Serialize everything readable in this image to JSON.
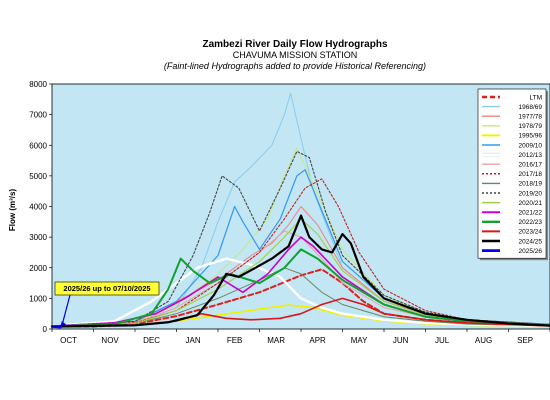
{
  "chart_data": {
    "type": "line",
    "title": "Zambezi River Daily Flow Hydrographs",
    "subtitle": "CHAVUMA MISSION STATION",
    "subtitle2": "(Faint-lined Hydrographs added to provide Historical Referencing)",
    "ylabel": "Flow (m³/s)",
    "xlabel": "",
    "ylim": [
      0,
      8000
    ],
    "yticks": [
      "0",
      "1000",
      "2000",
      "3000",
      "4000",
      "5000",
      "6000",
      "7000",
      "8000"
    ],
    "months": [
      "OCT",
      "NOV",
      "DEC",
      "JAN",
      "FEB",
      "MAR",
      "APR",
      "MAY",
      "JUN",
      "JUL",
      "AUG",
      "SEP"
    ],
    "x_range_months": [
      0,
      12
    ],
    "grid": false,
    "legend_position": "right",
    "annotation": {
      "text": "2025/26 up to 07/10/2025",
      "point": {
        "month": 0.2,
        "flow": 60
      }
    },
    "series": [
      {
        "name": "LTM",
        "color": "#e02020",
        "dash": "5,3",
        "width": 2,
        "points": [
          [
            0,
            95
          ],
          [
            1,
            80
          ],
          [
            2,
            160
          ],
          [
            3,
            420
          ],
          [
            4,
            800
          ],
          [
            5,
            1200
          ],
          [
            6,
            1750
          ],
          [
            6.5,
            1950
          ],
          [
            7,
            1500
          ],
          [
            7.5,
            900
          ],
          [
            8,
            500
          ],
          [
            9,
            300
          ],
          [
            10,
            200
          ],
          [
            11,
            130
          ],
          [
            12,
            100
          ]
        ]
      },
      {
        "name": "1968/69",
        "color": "#88ccee",
        "dash": "",
        "width": 1,
        "points": [
          [
            0,
            100
          ],
          [
            2,
            180
          ],
          [
            3,
            700
          ],
          [
            3.6,
            2000
          ],
          [
            4,
            3500
          ],
          [
            4.4,
            4800
          ],
          [
            4.8,
            5300
          ],
          [
            5.3,
            6000
          ],
          [
            5.6,
            7000
          ],
          [
            5.75,
            7700
          ],
          [
            5.9,
            6800
          ],
          [
            6.3,
            4500
          ],
          [
            7,
            2000
          ],
          [
            8,
            900
          ],
          [
            9,
            500
          ],
          [
            10,
            300
          ],
          [
            12,
            150
          ]
        ]
      },
      {
        "name": "1977/78",
        "color": "#f08080",
        "dash": "",
        "width": 1,
        "points": [
          [
            0,
            100
          ],
          [
            2,
            220
          ],
          [
            3,
            900
          ],
          [
            4,
            1600
          ],
          [
            4.8,
            2400
          ],
          [
            5.3,
            2800
          ],
          [
            5.7,
            3400
          ],
          [
            6,
            4000
          ],
          [
            6.4,
            3400
          ],
          [
            7,
            2000
          ],
          [
            8,
            900
          ],
          [
            9,
            500
          ],
          [
            10,
            300
          ],
          [
            12,
            150
          ]
        ]
      },
      {
        "name": "1978/79",
        "color": "#c8e878",
        "dash": "",
        "width": 1,
        "points": [
          [
            0,
            100
          ],
          [
            2,
            200
          ],
          [
            3,
            800
          ],
          [
            4,
            1800
          ],
          [
            4.6,
            2600
          ],
          [
            5.2,
            3600
          ],
          [
            5.6,
            5000
          ],
          [
            5.9,
            5900
          ],
          [
            6.2,
            5000
          ],
          [
            7,
            2600
          ],
          [
            8,
            1100
          ],
          [
            9,
            500
          ],
          [
            10,
            300
          ],
          [
            12,
            150
          ]
        ]
      },
      {
        "name": "1995/96",
        "color": "#f0f000",
        "dash": "",
        "width": 1.6,
        "points": [
          [
            0,
            90
          ],
          [
            2,
            130
          ],
          [
            3,
            260
          ],
          [
            4,
            450
          ],
          [
            5,
            650
          ],
          [
            5.7,
            780
          ],
          [
            6.3,
            700
          ],
          [
            7,
            450
          ],
          [
            8,
            260
          ],
          [
            9,
            170
          ],
          [
            10,
            120
          ],
          [
            12,
            90
          ]
        ]
      },
      {
        "name": "2009/10",
        "color": "#3399ee",
        "dash": "",
        "width": 1.2,
        "points": [
          [
            0,
            110
          ],
          [
            2,
            250
          ],
          [
            3,
            900
          ],
          [
            4,
            2400
          ],
          [
            4.4,
            4000
          ],
          [
            4.6,
            3500
          ],
          [
            5,
            2600
          ],
          [
            5.5,
            3600
          ],
          [
            5.9,
            5000
          ],
          [
            6.1,
            5200
          ],
          [
            6.4,
            4200
          ],
          [
            7,
            2200
          ],
          [
            8,
            1000
          ],
          [
            9,
            500
          ],
          [
            10,
            300
          ],
          [
            12,
            150
          ]
        ]
      },
      {
        "name": "2012/13",
        "color": "#ffffff",
        "dash": "",
        "width": 2.4,
        "points": [
          [
            0,
            100
          ],
          [
            1.5,
            250
          ],
          [
            2.4,
            900
          ],
          [
            3,
            1500
          ],
          [
            3.5,
            2000
          ],
          [
            4.2,
            2300
          ],
          [
            4.8,
            2100
          ],
          [
            5.5,
            1700
          ],
          [
            6,
            1000
          ],
          [
            6.5,
            700
          ],
          [
            7,
            500
          ],
          [
            8,
            300
          ],
          [
            9,
            200
          ],
          [
            10,
            150
          ],
          [
            12,
            100
          ]
        ]
      },
      {
        "name": "2016/17",
        "color": "#f0a0a0",
        "dash": "",
        "width": 1,
        "points": [
          [
            0,
            100
          ],
          [
            2,
            200
          ],
          [
            3,
            700
          ],
          [
            4,
            1500
          ],
          [
            5,
            2500
          ],
          [
            5.6,
            3200
          ],
          [
            6,
            3000
          ],
          [
            6.5,
            2300
          ],
          [
            7,
            1500
          ],
          [
            8,
            700
          ],
          [
            9,
            400
          ],
          [
            10,
            250
          ],
          [
            12,
            130
          ]
        ]
      },
      {
        "name": "2017/18",
        "color": "#c02020",
        "dash": "2,2",
        "width": 1.1,
        "points": [
          [
            0,
            100
          ],
          [
            2,
            200
          ],
          [
            3,
            600
          ],
          [
            4,
            1500
          ],
          [
            5,
            2500
          ],
          [
            5.6,
            3600
          ],
          [
            6.1,
            4600
          ],
          [
            6.5,
            4900
          ],
          [
            6.9,
            4000
          ],
          [
            7.4,
            2500
          ],
          [
            8,
            1300
          ],
          [
            9,
            600
          ],
          [
            10,
            300
          ],
          [
            12,
            150
          ]
        ]
      },
      {
        "name": "2018/19",
        "color": "#668866",
        "dash": "",
        "width": 1,
        "points": [
          [
            0,
            100
          ],
          [
            2,
            180
          ],
          [
            3,
            500
          ],
          [
            4,
            1000
          ],
          [
            5,
            1600
          ],
          [
            5.6,
            2000
          ],
          [
            6,
            1800
          ],
          [
            6.5,
            1200
          ],
          [
            7,
            800
          ],
          [
            8,
            400
          ],
          [
            9,
            250
          ],
          [
            10,
            160
          ],
          [
            12,
            100
          ]
        ]
      },
      {
        "name": "2019/20",
        "color": "#444444",
        "dash": "2,2",
        "width": 1.1,
        "points": [
          [
            0,
            100
          ],
          [
            2,
            250
          ],
          [
            2.8,
            900
          ],
          [
            3.4,
            2400
          ],
          [
            3.8,
            3800
          ],
          [
            4.1,
            5000
          ],
          [
            4.5,
            4600
          ],
          [
            5,
            3200
          ],
          [
            5.5,
            4600
          ],
          [
            5.9,
            5800
          ],
          [
            6.2,
            5600
          ],
          [
            6.6,
            3800
          ],
          [
            7,
            2400
          ],
          [
            8,
            1100
          ],
          [
            9,
            550
          ],
          [
            10,
            300
          ],
          [
            12,
            150
          ]
        ]
      },
      {
        "name": "2020/21",
        "color": "#a0d040",
        "dash": "",
        "width": 1.1,
        "points": [
          [
            0,
            100
          ],
          [
            2,
            180
          ],
          [
            3,
            600
          ],
          [
            4,
            1300
          ],
          [
            5,
            2200
          ],
          [
            5.6,
            3000
          ],
          [
            6,
            3600
          ],
          [
            6.4,
            3100
          ],
          [
            7,
            1900
          ],
          [
            8,
            900
          ],
          [
            9,
            450
          ],
          [
            10,
            270
          ],
          [
            12,
            140
          ]
        ]
      },
      {
        "name": "2021/22",
        "color": "#cc00cc",
        "dash": "",
        "width": 1.6,
        "points": [
          [
            0,
            100
          ],
          [
            1.5,
            200
          ],
          [
            2.5,
            500
          ],
          [
            3.2,
            1000
          ],
          [
            4,
            1700
          ],
          [
            4.6,
            1200
          ],
          [
            5.2,
            1800
          ],
          [
            5.7,
            2600
          ],
          [
            6,
            3000
          ],
          [
            6.3,
            2700
          ],
          [
            7,
            1700
          ],
          [
            8,
            800
          ],
          [
            9,
            400
          ],
          [
            10,
            250
          ],
          [
            12,
            120
          ]
        ]
      },
      {
        "name": "2022/23",
        "color": "#12a030",
        "dash": "",
        "width": 2,
        "points": [
          [
            0,
            90
          ],
          [
            1.5,
            150
          ],
          [
            2.4,
            500
          ],
          [
            2.8,
            1300
          ],
          [
            3.1,
            2300
          ],
          [
            3.4,
            1900
          ],
          [
            3.8,
            1500
          ],
          [
            4.3,
            1800
          ],
          [
            5,
            1500
          ],
          [
            5.6,
            2000
          ],
          [
            6,
            2600
          ],
          [
            6.4,
            2300
          ],
          [
            7,
            1600
          ],
          [
            8,
            800
          ],
          [
            9,
            400
          ],
          [
            10,
            250
          ],
          [
            12,
            120
          ]
        ]
      },
      {
        "name": "2023/24",
        "color": "#d81818",
        "dash": "",
        "width": 1.6,
        "points": [
          [
            0,
            90
          ],
          [
            2,
            130
          ],
          [
            3,
            260
          ],
          [
            3.6,
            500
          ],
          [
            4.2,
            350
          ],
          [
            4.8,
            300
          ],
          [
            5.5,
            350
          ],
          [
            6,
            500
          ],
          [
            6.5,
            800
          ],
          [
            7,
            1000
          ],
          [
            7.5,
            800
          ],
          [
            8,
            500
          ],
          [
            9,
            300
          ],
          [
            10,
            200
          ],
          [
            12,
            100
          ]
        ]
      },
      {
        "name": "2024/25",
        "color": "#000000",
        "dash": "",
        "width": 2.2,
        "points": [
          [
            0,
            80
          ],
          [
            2,
            120
          ],
          [
            2.8,
            220
          ],
          [
            3.5,
            450
          ],
          [
            3.9,
            1100
          ],
          [
            4.2,
            1800
          ],
          [
            4.5,
            1700
          ],
          [
            4.9,
            2000
          ],
          [
            5.3,
            2300
          ],
          [
            5.7,
            2700
          ],
          [
            6,
            3700
          ],
          [
            6.2,
            3000
          ],
          [
            6.5,
            2600
          ],
          [
            6.75,
            2500
          ],
          [
            7,
            3100
          ],
          [
            7.2,
            2800
          ],
          [
            7.5,
            1700
          ],
          [
            8,
            1000
          ],
          [
            9,
            500
          ],
          [
            10,
            300
          ],
          [
            11,
            180
          ],
          [
            12,
            110
          ]
        ]
      },
      {
        "name": "2025/26",
        "color": "#0000ee",
        "dash": "",
        "width": 2.4,
        "points": [
          [
            0,
            80
          ],
          [
            0.2,
            60
          ]
        ]
      }
    ]
  }
}
